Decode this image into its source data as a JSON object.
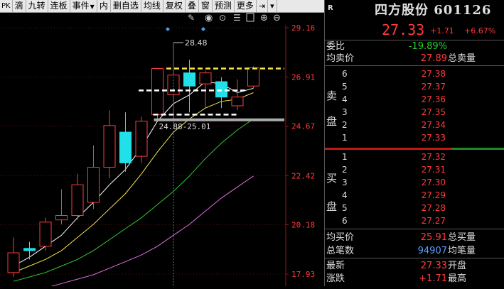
{
  "toolbar": {
    "items": [
      "PK",
      "滴",
      "九转",
      "连板",
      "事件",
      "内",
      "删自选",
      "均线",
      "复权",
      "叠",
      "窗",
      "预测",
      "更多"
    ]
  },
  "chart": {
    "price_axis": [
      "29.16",
      "26.91",
      "24.67",
      "22.42",
      "20.18",
      "17.93"
    ],
    "annotation_high": "28.48",
    "annotation_range": "24.88-25.01",
    "colors": {
      "up": "#ff3b3b",
      "down": "#22e0e8",
      "ma5": "#ffffff",
      "ma10": "#f5e64c",
      "ma20": "#38c838",
      "ma60": "#e070e0"
    }
  },
  "chart_data": {
    "type": "candlestick",
    "ylim": [
      17.93,
      29.16
    ],
    "candles": [
      {
        "o": 18.0,
        "h": 19.6,
        "l": 17.8,
        "c": 18.9
      },
      {
        "o": 19.1,
        "h": 19.4,
        "l": 18.6,
        "c": 19.0
      },
      {
        "o": 19.2,
        "h": 20.5,
        "l": 19.0,
        "c": 20.3
      },
      {
        "o": 20.4,
        "h": 21.8,
        "l": 20.2,
        "c": 20.6
      },
      {
        "o": 20.6,
        "h": 22.5,
        "l": 20.4,
        "c": 22.0
      },
      {
        "o": 21.2,
        "h": 23.8,
        "l": 20.9,
        "c": 22.8
      },
      {
        "o": 22.8,
        "h": 25.4,
        "l": 22.3,
        "c": 24.7
      },
      {
        "o": 24.4,
        "h": 25.3,
        "l": 22.6,
        "c": 23.0
      },
      {
        "o": 23.3,
        "h": 25.1,
        "l": 23.0,
        "c": 24.9
      },
      {
        "o": 25.2,
        "h": 27.3,
        "l": 25.0,
        "c": 27.3
      },
      {
        "o": 26.1,
        "h": 28.48,
        "l": 24.88,
        "c": 27.0
      },
      {
        "o": 27.1,
        "h": 27.7,
        "l": 25.3,
        "c": 26.5
      },
      {
        "o": 26.6,
        "h": 27.2,
        "l": 25.5,
        "c": 27.1
      },
      {
        "o": 26.7,
        "h": 26.9,
        "l": 25.5,
        "c": 26.0
      },
      {
        "o": 25.6,
        "h": 26.8,
        "l": 25.4,
        "c": 26.0
      },
      {
        "o": 26.5,
        "h": 27.4,
        "l": 26.4,
        "c": 27.33
      }
    ],
    "ma5": [
      18.3,
      18.7,
      19.2,
      19.7,
      20.5,
      21.2,
      22.0,
      22.7,
      23.7,
      24.9,
      25.7,
      26.1,
      26.7,
      26.6,
      26.2,
      26.4
    ],
    "ma10": [
      18.0,
      18.3,
      18.6,
      19.0,
      19.6,
      20.2,
      20.9,
      21.6,
      22.5,
      23.5,
      24.4,
      25.0,
      25.5,
      25.8,
      25.9,
      26.2
    ],
    "ma20": [
      17.6,
      17.8,
      18.0,
      18.3,
      18.6,
      19.0,
      19.5,
      20.0,
      20.5,
      21.1,
      21.7,
      22.4,
      23.2,
      23.9,
      24.5,
      25.0
    ],
    "ma60": [
      17.0,
      17.1,
      17.3,
      17.5,
      17.7,
      17.9,
      18.2,
      18.5,
      18.8,
      19.2,
      19.7,
      20.2,
      20.8,
      21.4,
      21.9,
      22.4
    ]
  },
  "quote": {
    "mark": "R",
    "title": "四方股份 601126",
    "price": "27.33",
    "change": "+1.71",
    "pct": "+6.67%",
    "weibi_label": "委比",
    "weibi": "-19.89%",
    "avg_sell_label": "均卖价",
    "avg_sell": "27.89",
    "total_sell_label": "总卖量",
    "sell_side_1": "卖",
    "sell_side_2": "盘",
    "asks": [
      {
        "lvl": "6",
        "px": "27.38"
      },
      {
        "lvl": "5",
        "px": "27.37"
      },
      {
        "lvl": "4",
        "px": "27.36"
      },
      {
        "lvl": "3",
        "px": "27.35"
      },
      {
        "lvl": "2",
        "px": "27.34"
      },
      {
        "lvl": "1",
        "px": "27.33"
      }
    ],
    "buy_side_1": "买",
    "buy_side_2": "盘",
    "bids": [
      {
        "lvl": "1",
        "px": "27.32"
      },
      {
        "lvl": "2",
        "px": "27.31"
      },
      {
        "lvl": "3",
        "px": "27.30"
      },
      {
        "lvl": "4",
        "px": "27.29"
      },
      {
        "lvl": "5",
        "px": "27.28"
      },
      {
        "lvl": "6",
        "px": "27.27"
      }
    ],
    "avg_buy_label": "均买价",
    "avg_buy": "25.91",
    "total_buy_label": "总买量",
    "total_trades_label": "总笔数",
    "total_trades": "94907",
    "avg_trade_label": "均笔量",
    "latest_label": "最新",
    "latest": "27.33",
    "open_label": "开盘",
    "chg_label": "涨跌",
    "chg": "+1.71",
    "high_label": "最高"
  }
}
